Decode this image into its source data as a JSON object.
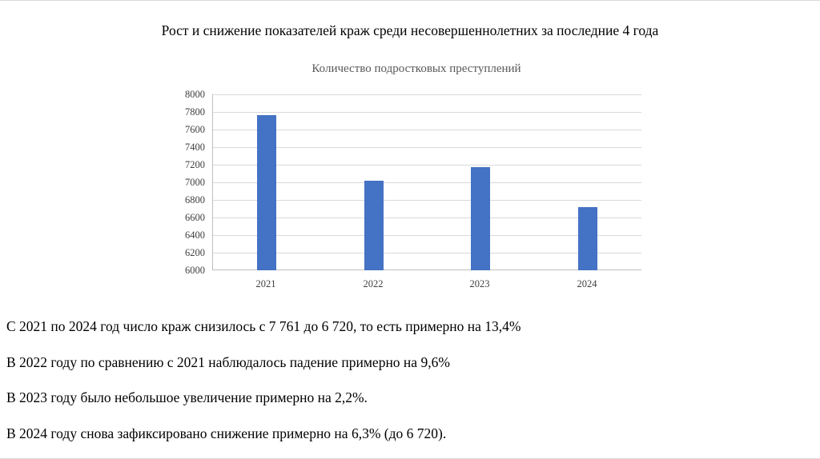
{
  "slide": {
    "title": "Рост и снижение показателей краж среди несовершеннолетних за последние 4 года"
  },
  "chart_data": {
    "type": "bar",
    "title": "Количество подростковых преступлений",
    "categories": [
      "2021",
      "2022",
      "2023",
      "2024"
    ],
    "values": [
      7761,
      7016,
      7170,
      6720
    ],
    "xlabel": "",
    "ylabel": "",
    "ylim": [
      6000,
      8000
    ],
    "ytick_step": 200,
    "bar_color": "#4472C4",
    "grid": true,
    "legend_position": "none"
  },
  "notes": [
    "С 2021 по 2024 год число краж снизилось с 7 761 до 6 720, то есть примерно на 13,4%",
    "В 2022 году по сравнению с 2021 наблюдалось падение примерно на 9,6%",
    "В 2023 году было небольшое увеличение примерно на 2,2%.",
    "В 2024 году снова зафиксировано снижение примерно на 6,3% (до 6 720)."
  ]
}
